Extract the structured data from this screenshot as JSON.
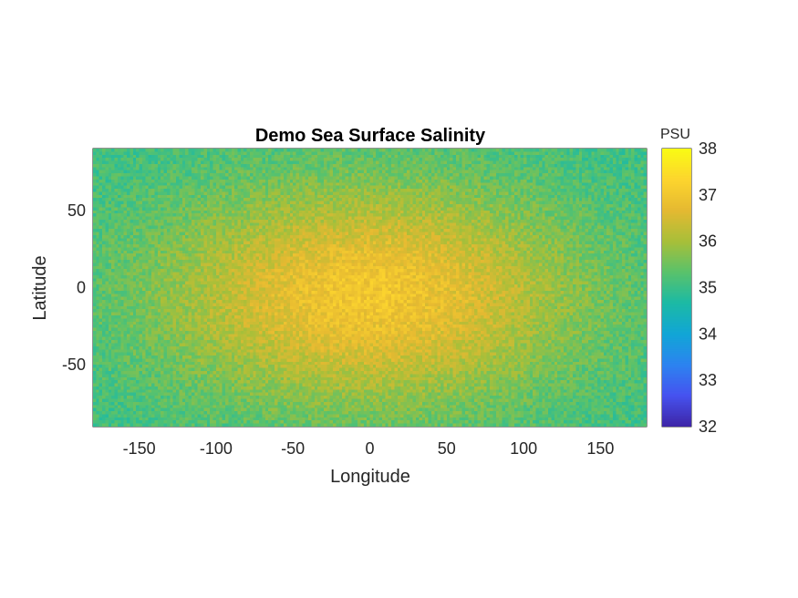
{
  "chart_data": {
    "type": "heatmap",
    "title": "Demo Sea Surface Salinity",
    "xlabel": "Longitude",
    "ylabel": "Latitude",
    "xlim": [
      -180,
      180
    ],
    "ylim": [
      -90,
      90
    ],
    "xticks": [
      -150,
      -100,
      -50,
      0,
      50,
      100,
      150
    ],
    "yticks": [
      -50,
      0,
      50
    ],
    "grid": false,
    "field": {
      "center_lon": 0,
      "center_lat": -5,
      "peak_value": 37.0,
      "edge_value": 35.0,
      "corner_value": 34.8,
      "noise_amplitude": 0.35
    },
    "colorbar": {
      "label": "PSU",
      "clim": [
        32,
        38
      ],
      "ticks": [
        32,
        33,
        34,
        35,
        36,
        37,
        38
      ],
      "colormap": "parula",
      "stops": [
        "#3e26a8",
        "#4653f0",
        "#2c84f0",
        "#11a6d6",
        "#1cbaa5",
        "#5ac26b",
        "#a8bf39",
        "#e5b931",
        "#fdd52e",
        "#f9fb14"
      ]
    }
  }
}
